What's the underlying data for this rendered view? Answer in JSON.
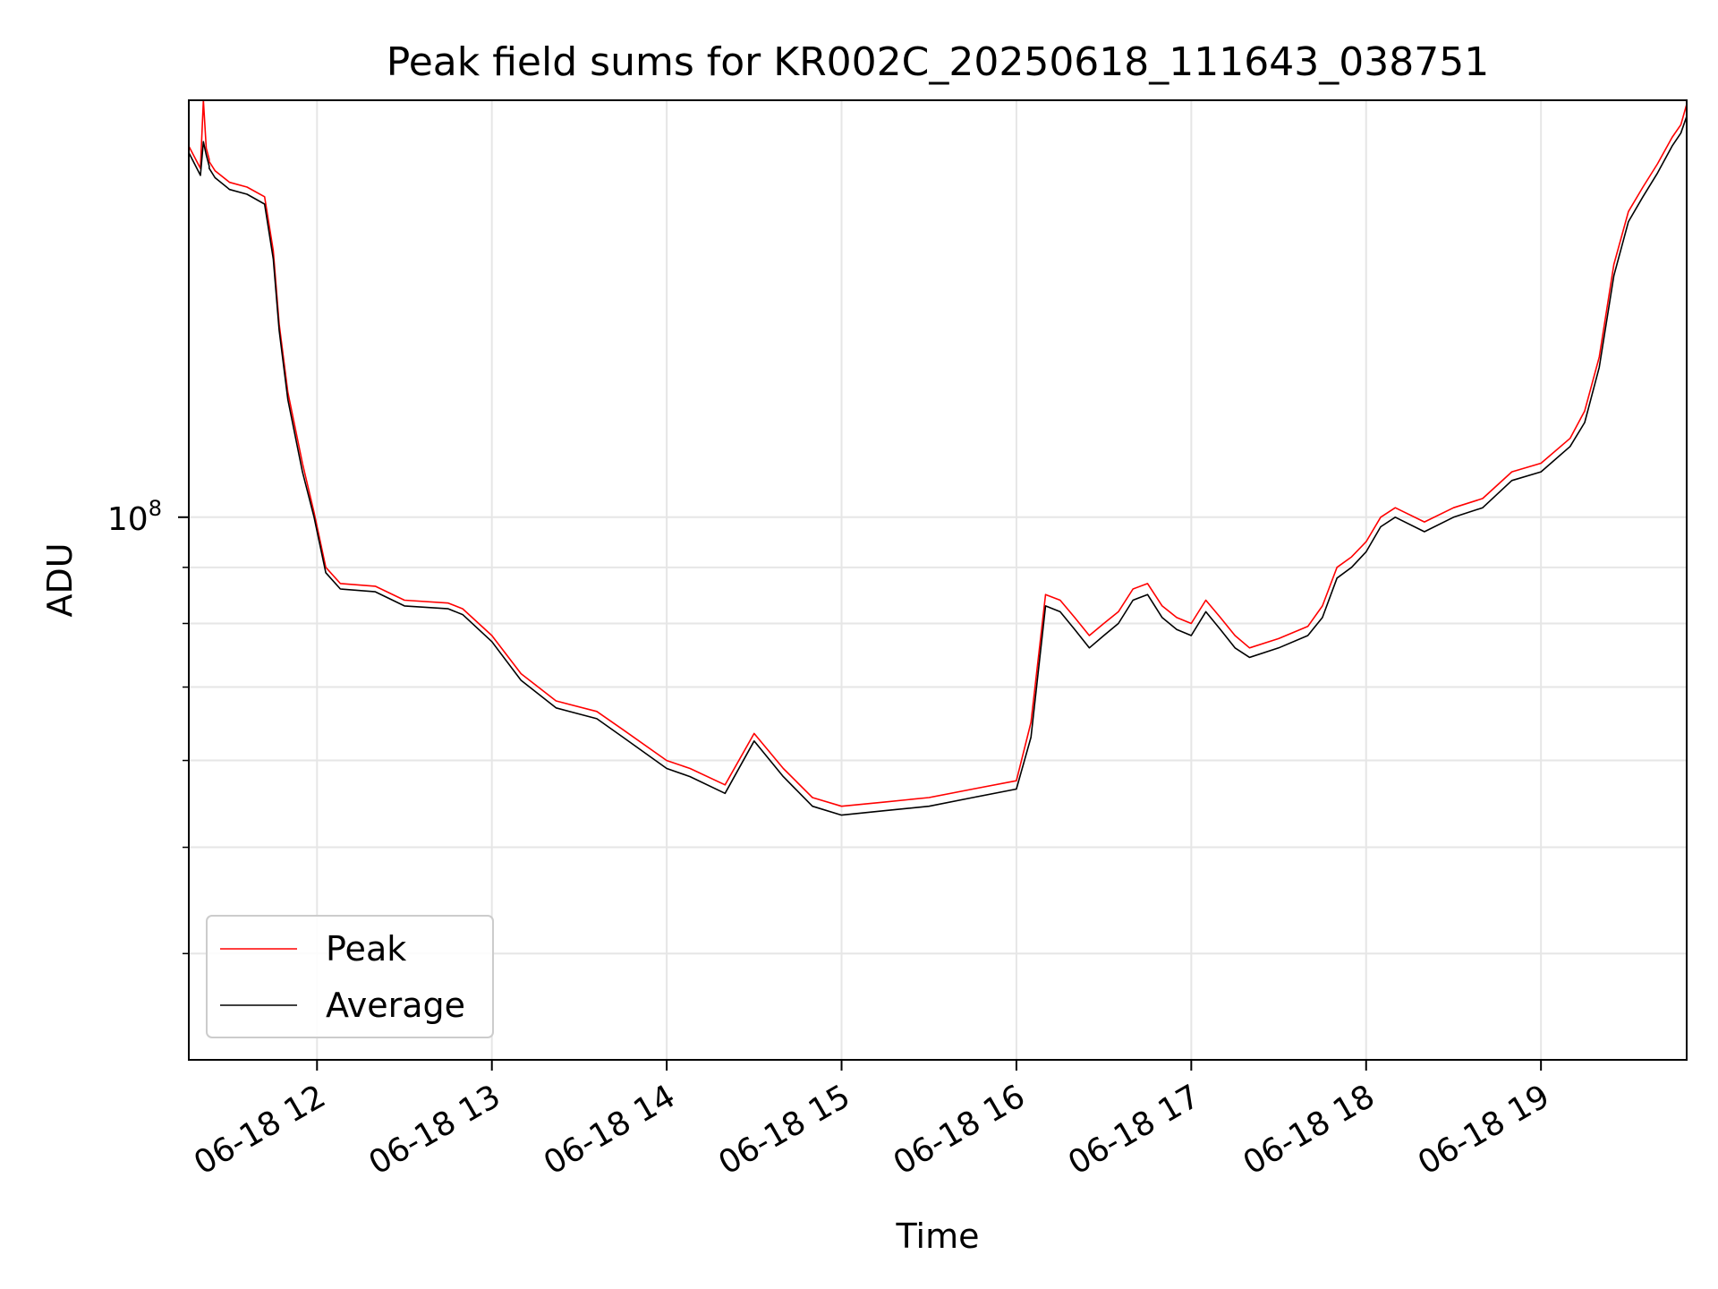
{
  "chart_data": {
    "type": "line",
    "title": "Peak field sums for KR002C_20250618_111643_038751",
    "xlabel": "Time",
    "ylabel": "ADU",
    "yscale": "log",
    "xlim": [
      "2025-06-18 11:16",
      "2025-06-18 19:50"
    ],
    "ylim": [
      32000000,
      240000000
    ],
    "x_ticks": [
      "06-18 12",
      "06-18 13",
      "06-18 14",
      "06-18 15",
      "06-18 16",
      "06-18 17",
      "06-18 18",
      "06-18 19"
    ],
    "y_tick_labels": [
      {
        "base": "10",
        "exp": "8",
        "value": 100000000
      }
    ],
    "y_minor_ticks": [
      40000000,
      50000000,
      60000000,
      70000000,
      80000000,
      90000000
    ],
    "grid": true,
    "legend_position": "lower left",
    "series": [
      {
        "name": "Peak",
        "color": "#ff0000",
        "x": [
          "2025-06-18 11:16",
          "2025-06-18 11:20",
          "2025-06-18 11:21",
          "2025-06-18 11:22",
          "2025-06-18 11:23",
          "2025-06-18 11:23",
          "2025-06-18 11:25",
          "2025-06-18 11:30",
          "2025-06-18 11:36",
          "2025-06-18 11:42",
          "2025-06-18 11:45",
          "2025-06-18 11:47",
          "2025-06-18 11:50",
          "2025-06-18 11:55",
          "2025-06-18 11:59",
          "2025-06-18 12:03",
          "2025-06-18 12:08",
          "2025-06-18 12:20",
          "2025-06-18 12:30",
          "2025-06-18 12:45",
          "2025-06-18 12:50",
          "2025-06-18 13:00",
          "2025-06-18 13:10",
          "2025-06-18 13:22",
          "2025-06-18 13:36",
          "2025-06-18 13:45",
          "2025-06-18 14:00",
          "2025-06-18 14:08",
          "2025-06-18 14:20",
          "2025-06-18 14:30",
          "2025-06-18 14:40",
          "2025-06-18 14:50",
          "2025-06-18 15:00",
          "2025-06-18 15:15",
          "2025-06-18 15:30",
          "2025-06-18 15:45",
          "2025-06-18 16:00",
          "2025-06-18 16:05",
          "2025-06-18 16:10",
          "2025-06-18 16:15",
          "2025-06-18 16:20",
          "2025-06-18 16:25",
          "2025-06-18 16:30",
          "2025-06-18 16:35",
          "2025-06-18 16:40",
          "2025-06-18 16:45",
          "2025-06-18 16:50",
          "2025-06-18 16:55",
          "2025-06-18 17:00",
          "2025-06-18 17:05",
          "2025-06-18 17:10",
          "2025-06-18 17:15",
          "2025-06-18 17:20",
          "2025-06-18 17:30",
          "2025-06-18 17:40",
          "2025-06-18 17:45",
          "2025-06-18 17:50",
          "2025-06-18 17:55",
          "2025-06-18 18:00",
          "2025-06-18 18:05",
          "2025-06-18 18:10",
          "2025-06-18 18:20",
          "2025-06-18 18:30",
          "2025-06-18 18:40",
          "2025-06-18 18:50",
          "2025-06-18 19:00",
          "2025-06-18 19:10",
          "2025-06-18 19:15",
          "2025-06-18 19:20",
          "2025-06-18 19:25",
          "2025-06-18 19:30",
          "2025-06-18 19:35",
          "2025-06-18 19:40",
          "2025-06-18 19:45",
          "2025-06-18 19:48",
          "2025-06-18 19:50"
        ],
        "y": [
          218000000,
          208000000,
          240000000,
          217000000,
          212000000,
          211000000,
          207000000,
          202000000,
          200000000,
          196000000,
          175000000,
          150000000,
          130000000,
          112000000,
          101000000,
          90000000,
          87000000,
          86500000,
          84000000,
          83500000,
          82500000,
          78000000,
          72000000,
          68000000,
          66500000,
          64000000,
          60000000,
          59000000,
          57000000,
          63500000,
          59000000,
          55500000,
          54500000,
          55000000,
          55500000,
          56500000,
          57500000,
          65000000,
          85000000,
          84000000,
          81000000,
          78000000,
          80000000,
          82000000,
          86000000,
          87000000,
          83000000,
          81000000,
          80000000,
          84000000,
          81000000,
          78000000,
          76000000,
          77500000,
          79500000,
          83000000,
          90000000,
          92000000,
          95000000,
          100000000,
          102000000,
          99000000,
          102000000,
          104000000,
          110000000,
          112000000,
          118000000,
          125000000,
          140000000,
          170000000,
          190000000,
          200000000,
          210000000,
          222000000,
          228000000,
          238000000
        ]
      },
      {
        "name": "Average",
        "color": "#000000",
        "x": [
          "2025-06-18 11:16",
          "2025-06-18 11:20",
          "2025-06-18 11:21",
          "2025-06-18 11:22",
          "2025-06-18 11:23",
          "2025-06-18 11:23",
          "2025-06-18 11:25",
          "2025-06-18 11:30",
          "2025-06-18 11:36",
          "2025-06-18 11:42",
          "2025-06-18 11:45",
          "2025-06-18 11:47",
          "2025-06-18 11:50",
          "2025-06-18 11:55",
          "2025-06-18 11:59",
          "2025-06-18 12:03",
          "2025-06-18 12:08",
          "2025-06-18 12:20",
          "2025-06-18 12:30",
          "2025-06-18 12:45",
          "2025-06-18 12:50",
          "2025-06-18 13:00",
          "2025-06-18 13:10",
          "2025-06-18 13:22",
          "2025-06-18 13:36",
          "2025-06-18 13:45",
          "2025-06-18 14:00",
          "2025-06-18 14:08",
          "2025-06-18 14:20",
          "2025-06-18 14:30",
          "2025-06-18 14:40",
          "2025-06-18 14:50",
          "2025-06-18 15:00",
          "2025-06-18 15:15",
          "2025-06-18 15:30",
          "2025-06-18 15:45",
          "2025-06-18 16:00",
          "2025-06-18 16:05",
          "2025-06-18 16:10",
          "2025-06-18 16:15",
          "2025-06-18 16:20",
          "2025-06-18 16:25",
          "2025-06-18 16:30",
          "2025-06-18 16:35",
          "2025-06-18 16:40",
          "2025-06-18 16:45",
          "2025-06-18 16:50",
          "2025-06-18 16:55",
          "2025-06-18 17:00",
          "2025-06-18 17:05",
          "2025-06-18 17:10",
          "2025-06-18 17:15",
          "2025-06-18 17:20",
          "2025-06-18 17:30",
          "2025-06-18 17:40",
          "2025-06-18 17:45",
          "2025-06-18 17:50",
          "2025-06-18 17:55",
          "2025-06-18 18:00",
          "2025-06-18 18:05",
          "2025-06-18 18:10",
          "2025-06-18 18:20",
          "2025-06-18 18:30",
          "2025-06-18 18:40",
          "2025-06-18 18:50",
          "2025-06-18 19:00",
          "2025-06-18 19:10",
          "2025-06-18 19:15",
          "2025-06-18 19:20",
          "2025-06-18 19:25",
          "2025-06-18 19:30",
          "2025-06-18 19:35",
          "2025-06-18 19:40",
          "2025-06-18 19:45",
          "2025-06-18 19:48",
          "2025-06-18 19:50"
        ],
        "y": [
          215000000,
          205000000,
          220000000,
          214000000,
          209000000,
          208000000,
          204000000,
          199000000,
          197000000,
          193000000,
          172000000,
          148000000,
          128000000,
          110000000,
          100000000,
          89000000,
          86000000,
          85500000,
          83000000,
          82500000,
          81500000,
          77000000,
          71000000,
          67000000,
          65500000,
          63000000,
          59000000,
          58000000,
          56000000,
          62500000,
          58000000,
          54500000,
          53500000,
          54000000,
          54500000,
          55500000,
          56500000,
          63000000,
          83000000,
          82000000,
          79000000,
          76000000,
          78000000,
          80000000,
          84000000,
          85000000,
          81000000,
          79000000,
          78000000,
          82000000,
          79000000,
          76000000,
          74500000,
          76000000,
          78000000,
          81000000,
          88000000,
          90000000,
          93000000,
          98000000,
          100000000,
          97000000,
          100000000,
          102000000,
          108000000,
          110000000,
          116000000,
          122000000,
          137000000,
          166000000,
          186000000,
          196000000,
          206000000,
          218000000,
          224000000,
          232000000
        ]
      }
    ]
  }
}
